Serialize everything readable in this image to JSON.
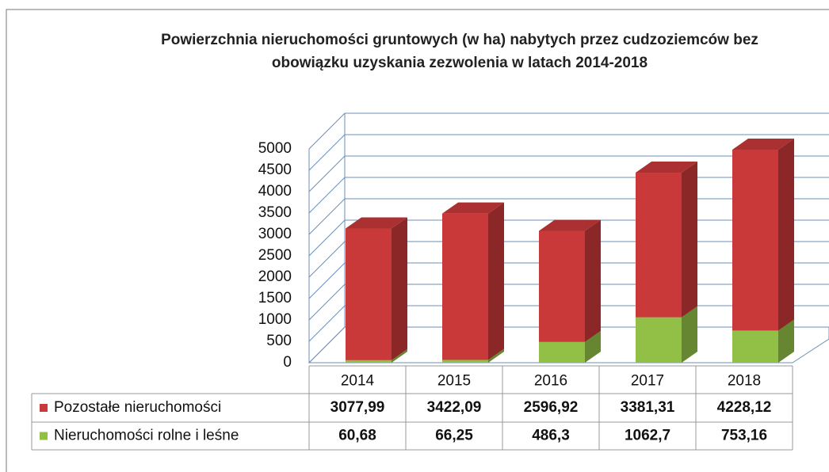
{
  "chart_data": {
    "type": "bar",
    "stacked": true,
    "title": "Powierzchnia nieruchomości gruntowych (w ha) nabytych przez cudzoziemców bez obowiązku uzyskania zezwolenia w latach 2014-2018",
    "categories": [
      "2014",
      "2015",
      "2016",
      "2017",
      "2018"
    ],
    "series": [
      {
        "name": "Nieruchomości rolne i leśne",
        "color": "#92c047",
        "values": [
          60.68,
          66.25,
          486.3,
          1062.7,
          753.16
        ],
        "value_labels": [
          "60,68",
          "66,25",
          "486,3",
          "1062,7",
          "753,16"
        ]
      },
      {
        "name": "Pozostałe nieruchomości",
        "color": "#c9393a",
        "values": [
          3077.99,
          3422.09,
          2596.92,
          3381.31,
          4228.12
        ],
        "value_labels": [
          "3077,99",
          "3422,09",
          "2596,92",
          "3381,31",
          "4228,12"
        ]
      }
    ],
    "ylim": [
      0,
      5000
    ],
    "yticks": [
      0,
      500,
      1000,
      1500,
      2000,
      2500,
      3000,
      3500,
      4000,
      4500,
      5000
    ],
    "grid": true
  }
}
